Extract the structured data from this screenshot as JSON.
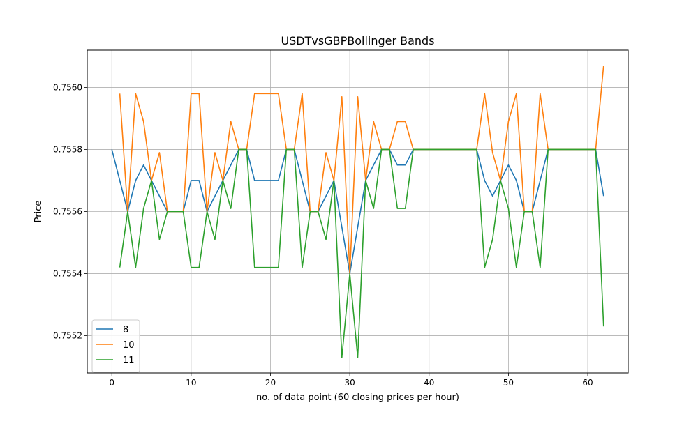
{
  "chart_data": {
    "type": "line",
    "title": "USDTvsGBPBollinger Bands",
    "xlabel": "no. of data point (60 closing prices per hour)",
    "ylabel": "Price",
    "xlim": [
      -3.1,
      65.1
    ],
    "ylim": [
      0.75508,
      0.75612
    ],
    "xticks": [
      0,
      10,
      20,
      30,
      40,
      50,
      60
    ],
    "xtick_labels": [
      "0",
      "10",
      "20",
      "30",
      "40",
      "50",
      "60"
    ],
    "yticks": [
      0.7552,
      0.7554,
      0.7556,
      0.7558,
      0.756
    ],
    "ytick_labels": [
      "0.7552",
      "0.7554",
      "0.7556",
      "0.7558",
      "0.7560"
    ],
    "grid": true,
    "legend_position": "lower-left",
    "series": [
      {
        "name": "8",
        "color": "#1f77b4",
        "x": [
          0,
          1,
          2,
          3,
          4,
          5,
          6,
          7,
          8,
          9,
          10,
          11,
          12,
          13,
          14,
          15,
          16,
          17,
          18,
          19,
          20,
          21,
          22,
          23,
          24,
          25,
          26,
          27,
          28,
          29,
          30,
          31,
          32,
          33,
          34,
          35,
          36,
          37,
          38,
          39,
          40,
          41,
          42,
          43,
          44,
          45,
          46,
          47,
          48,
          49,
          50,
          51,
          52,
          53,
          54,
          55,
          56,
          57,
          58,
          59,
          60,
          61,
          62
        ],
        "values": [
          0.7558,
          0.7557,
          0.7556,
          0.7557,
          0.75575,
          0.7557,
          0.75565,
          0.7556,
          0.7556,
          0.7556,
          0.7557,
          0.7557,
          0.7556,
          0.75565,
          0.7557,
          0.75575,
          0.7558,
          0.7558,
          0.7557,
          0.7557,
          0.7557,
          0.7557,
          0.7558,
          0.7558,
          0.7557,
          0.7556,
          0.7556,
          0.75565,
          0.7557,
          0.75555,
          0.7554,
          0.75555,
          0.7557,
          0.75575,
          0.7558,
          0.7558,
          0.75575,
          0.75575,
          0.7558,
          0.7558,
          0.7558,
          0.7558,
          0.7558,
          0.7558,
          0.7558,
          0.7558,
          0.7558,
          0.7557,
          0.75565,
          0.7557,
          0.75575,
          0.7557,
          0.7556,
          0.7556,
          0.7557,
          0.7558,
          0.7558,
          0.7558,
          0.7558,
          0.7558,
          0.7558,
          0.7558,
          0.75565
        ]
      },
      {
        "name": "10",
        "color": "#ff7f0e",
        "x": [
          1,
          2,
          3,
          4,
          5,
          6,
          7,
          8,
          9,
          10,
          11,
          12,
          13,
          14,
          15,
          16,
          17,
          18,
          19,
          20,
          21,
          22,
          23,
          24,
          25,
          26,
          27,
          28,
          29,
          30,
          31,
          32,
          33,
          34,
          35,
          36,
          37,
          38,
          39,
          40,
          41,
          42,
          43,
          44,
          45,
          46,
          47,
          48,
          49,
          50,
          51,
          52,
          53,
          54,
          55,
          56,
          57,
          58,
          59,
          60,
          61,
          62
        ],
        "values": [
          0.75598,
          0.7556,
          0.75598,
          0.75589,
          0.7557,
          0.75579,
          0.7556,
          0.7556,
          0.7556,
          0.75598,
          0.75598,
          0.7556,
          0.75579,
          0.7557,
          0.75589,
          0.7558,
          0.7558,
          0.75598,
          0.75598,
          0.75598,
          0.75598,
          0.7558,
          0.7558,
          0.75598,
          0.7556,
          0.7556,
          0.75579,
          0.7557,
          0.75597,
          0.7554,
          0.75597,
          0.7557,
          0.75589,
          0.7558,
          0.7558,
          0.75589,
          0.75589,
          0.7558,
          0.7558,
          0.7558,
          0.7558,
          0.7558,
          0.7558,
          0.7558,
          0.7558,
          0.7558,
          0.75598,
          0.75579,
          0.7557,
          0.75589,
          0.75598,
          0.7556,
          0.7556,
          0.75598,
          0.7558,
          0.7558,
          0.7558,
          0.7558,
          0.7558,
          0.7558,
          0.7558,
          0.75607
        ]
      },
      {
        "name": "11",
        "color": "#2ca02c",
        "x": [
          1,
          2,
          3,
          4,
          5,
          6,
          7,
          8,
          9,
          10,
          11,
          12,
          13,
          14,
          15,
          16,
          17,
          18,
          19,
          20,
          21,
          22,
          23,
          24,
          25,
          26,
          27,
          28,
          29,
          30,
          31,
          32,
          33,
          34,
          35,
          36,
          37,
          38,
          39,
          40,
          41,
          42,
          43,
          44,
          45,
          46,
          47,
          48,
          49,
          50,
          51,
          52,
          53,
          54,
          55,
          56,
          57,
          58,
          59,
          60,
          61,
          62
        ],
        "values": [
          0.75542,
          0.7556,
          0.75542,
          0.75561,
          0.7557,
          0.75551,
          0.7556,
          0.7556,
          0.7556,
          0.75542,
          0.75542,
          0.7556,
          0.75551,
          0.7557,
          0.75561,
          0.7558,
          0.7558,
          0.75542,
          0.75542,
          0.75542,
          0.75542,
          0.7558,
          0.7558,
          0.75542,
          0.7556,
          0.7556,
          0.75551,
          0.7557,
          0.75513,
          0.7554,
          0.75513,
          0.7557,
          0.75561,
          0.7558,
          0.7558,
          0.75561,
          0.75561,
          0.7558,
          0.7558,
          0.7558,
          0.7558,
          0.7558,
          0.7558,
          0.7558,
          0.7558,
          0.7558,
          0.75542,
          0.75551,
          0.7557,
          0.75561,
          0.75542,
          0.7556,
          0.7556,
          0.75542,
          0.7558,
          0.7558,
          0.7558,
          0.7558,
          0.7558,
          0.7558,
          0.7558,
          0.75523
        ]
      }
    ]
  }
}
